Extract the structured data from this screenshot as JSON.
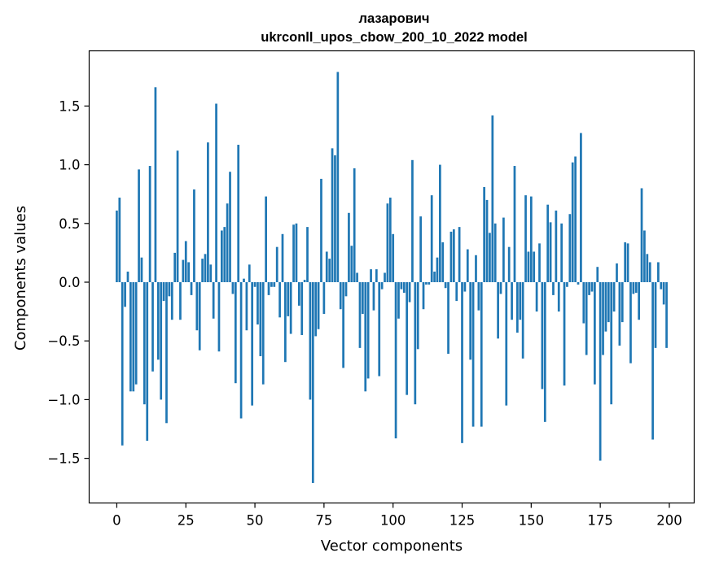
{
  "chart_data": {
    "type": "bar",
    "title": "лазарович",
    "subtitle": "ukrconll_upos_cbow_200_10_2022 model",
    "xlabel": "Vector components",
    "ylabel": "Components values",
    "xlim": [
      -10,
      209
    ],
    "ylim": [
      -1.88,
      1.97
    ],
    "xticks": [
      0,
      25,
      50,
      75,
      100,
      125,
      150,
      175,
      200
    ],
    "yticks": [
      -1.5,
      -1.0,
      -0.5,
      0.0,
      0.5,
      1.0,
      1.5
    ],
    "ytick_labels": [
      "−1.5",
      "−1.0",
      "−0.5",
      "0.0",
      "0.5",
      "1.0",
      "1.5"
    ],
    "bar_color": "#1f77b4",
    "grid": false,
    "values": [
      0.61,
      0.72,
      -1.39,
      -0.21,
      0.09,
      -0.93,
      -0.93,
      -0.87,
      0.96,
      0.21,
      -1.04,
      -1.35,
      0.99,
      -0.76,
      1.66,
      -0.66,
      -1.0,
      -0.16,
      -1.2,
      -0.12,
      -0.32,
      0.25,
      1.12,
      -0.32,
      0.19,
      0.35,
      0.17,
      -0.11,
      0.79,
      -0.41,
      -0.58,
      0.2,
      0.24,
      1.19,
      0.15,
      -0.31,
      1.52,
      -0.59,
      0.44,
      0.47,
      0.67,
      0.94,
      -0.1,
      -0.86,
      1.17,
      -1.16,
      0.03,
      -0.41,
      0.15,
      -1.05,
      -0.04,
      -0.36,
      -0.63,
      -0.87,
      0.73,
      -0.11,
      -0.04,
      -0.04,
      0.3,
      -0.3,
      0.41,
      -0.68,
      -0.29,
      -0.44,
      0.49,
      0.5,
      -0.2,
      -0.45,
      0.02,
      0.47,
      -1.0,
      -1.71,
      -0.46,
      -0.4,
      0.88,
      -0.27,
      0.26,
      0.2,
      1.14,
      1.08,
      1.79,
      -0.23,
      -0.73,
      -0.12,
      0.59,
      0.31,
      0.97,
      0.08,
      -0.56,
      -0.27,
      -0.93,
      -0.82,
      0.11,
      -0.24,
      0.11,
      -0.8,
      -0.06,
      0.08,
      0.67,
      0.72,
      0.41,
      -1.33,
      -0.31,
      -0.06,
      -0.09,
      -0.96,
      -0.17,
      1.04,
      -1.04,
      -0.57,
      0.56,
      -0.23,
      -0.02,
      -0.02,
      0.74,
      0.09,
      0.21,
      1.0,
      0.34,
      -0.05,
      -0.61,
      0.43,
      0.45,
      -0.16,
      0.47,
      -1.37,
      -0.08,
      0.28,
      -0.66,
      -1.23,
      0.23,
      -0.24,
      -1.23,
      0.81,
      0.7,
      0.42,
      1.42,
      0.5,
      -0.48,
      -0.1,
      0.55,
      -1.05,
      0.3,
      -0.32,
      0.99,
      -0.43,
      -0.32,
      -0.65,
      0.74,
      0.26,
      0.73,
      0.26,
      -0.25,
      0.33,
      -0.91,
      -1.19,
      0.66,
      0.51,
      -0.11,
      0.61,
      -0.25,
      0.5,
      -0.88,
      -0.04,
      0.58,
      1.02,
      1.07,
      -0.02,
      1.27,
      -0.35,
      -0.62,
      -0.11,
      -0.08,
      -0.87,
      0.13,
      -1.52,
      -0.62,
      -0.42,
      -0.34,
      -1.04,
      -0.25,
      0.16,
      -0.54,
      -0.34,
      0.34,
      0.33,
      -0.69,
      -0.1,
      -0.09,
      -0.32,
      0.8,
      0.44,
      0.24,
      0.17,
      -1.34,
      -0.56,
      0.17,
      -0.06,
      -0.19,
      -0.56
    ]
  }
}
